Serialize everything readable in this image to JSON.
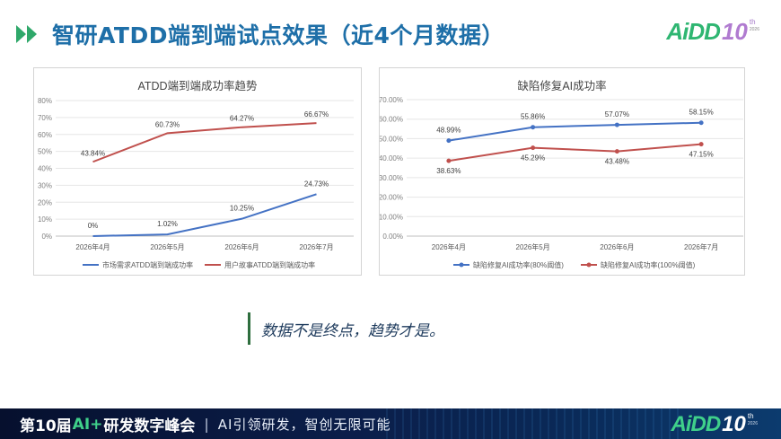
{
  "header": {
    "title": "智研ATDD端到端试点效果（近4个月数据）",
    "logo": {
      "text": "AiDD",
      "num": "10",
      "sup": "th",
      "year": "2026"
    }
  },
  "colors": {
    "blue_series": "#4472c4",
    "red_series": "#c0504d",
    "title_blue": "#1e6fa8",
    "brand_green": "#2fb672"
  },
  "chart_data": [
    {
      "type": "line",
      "title": "ATDD端到端成功率趋势",
      "categories": [
        "2026年4月",
        "2026年5月",
        "2026年6月",
        "2026年7月"
      ],
      "yticks": [
        "0%",
        "10%",
        "20%",
        "30%",
        "40%",
        "50%",
        "60%",
        "70%",
        "80%"
      ],
      "ylim": [
        0,
        80
      ],
      "series": [
        {
          "name": "市场需求ATDD端到端成功率",
          "color": "#4472c4",
          "values": [
            0,
            1.02,
            10.25,
            24.73
          ],
          "labels": [
            "0%",
            "1.02%",
            "10.25%",
            "24.73%"
          ],
          "marker": false
        },
        {
          "name": "用户故事ATDD端到端成功率",
          "color": "#c0504d",
          "values": [
            43.84,
            60.73,
            64.27,
            66.67
          ],
          "labels": [
            "43.84%",
            "60.73%",
            "64.27%",
            "66.67%"
          ],
          "marker": false
        }
      ],
      "grid": true,
      "legend": "bottom"
    },
    {
      "type": "line",
      "title": "缺陷修复AI成功率",
      "categories": [
        "2026年4月",
        "2026年5月",
        "2026年6月",
        "2026年7月"
      ],
      "yticks": [
        "0.00%",
        "10.00%",
        "20.00%",
        "30.00%",
        "40.00%",
        "50.00%",
        "60.00%",
        "70.00%"
      ],
      "ylim": [
        0,
        70
      ],
      "series": [
        {
          "name": "缺陷修复AI成功率(80%阈值)",
          "color": "#4472c4",
          "values": [
            48.99,
            55.86,
            57.07,
            58.15
          ],
          "labels": [
            "48.99%",
            "55.86%",
            "57.07%",
            "58.15%"
          ],
          "marker": true
        },
        {
          "name": "缺陷修复AI成功率(100%阈值)",
          "color": "#c0504d",
          "values": [
            38.63,
            45.29,
            43.48,
            47.15
          ],
          "labels": [
            "38.63%",
            "45.29%",
            "43.48%",
            "47.15%"
          ],
          "marker": true
        }
      ],
      "grid": true,
      "legend": "bottom"
    }
  ],
  "quote": "数据不是终点，趋势才是。",
  "footer": {
    "prefix": "第10届",
    "ai": "AI+",
    "suffix": "研发数字峰会",
    "sep": "|",
    "slogan": "AI引领研发，智创无限可能",
    "logo": {
      "text": "AiDD",
      "num": "10",
      "sup": "th",
      "year": "2026"
    }
  }
}
